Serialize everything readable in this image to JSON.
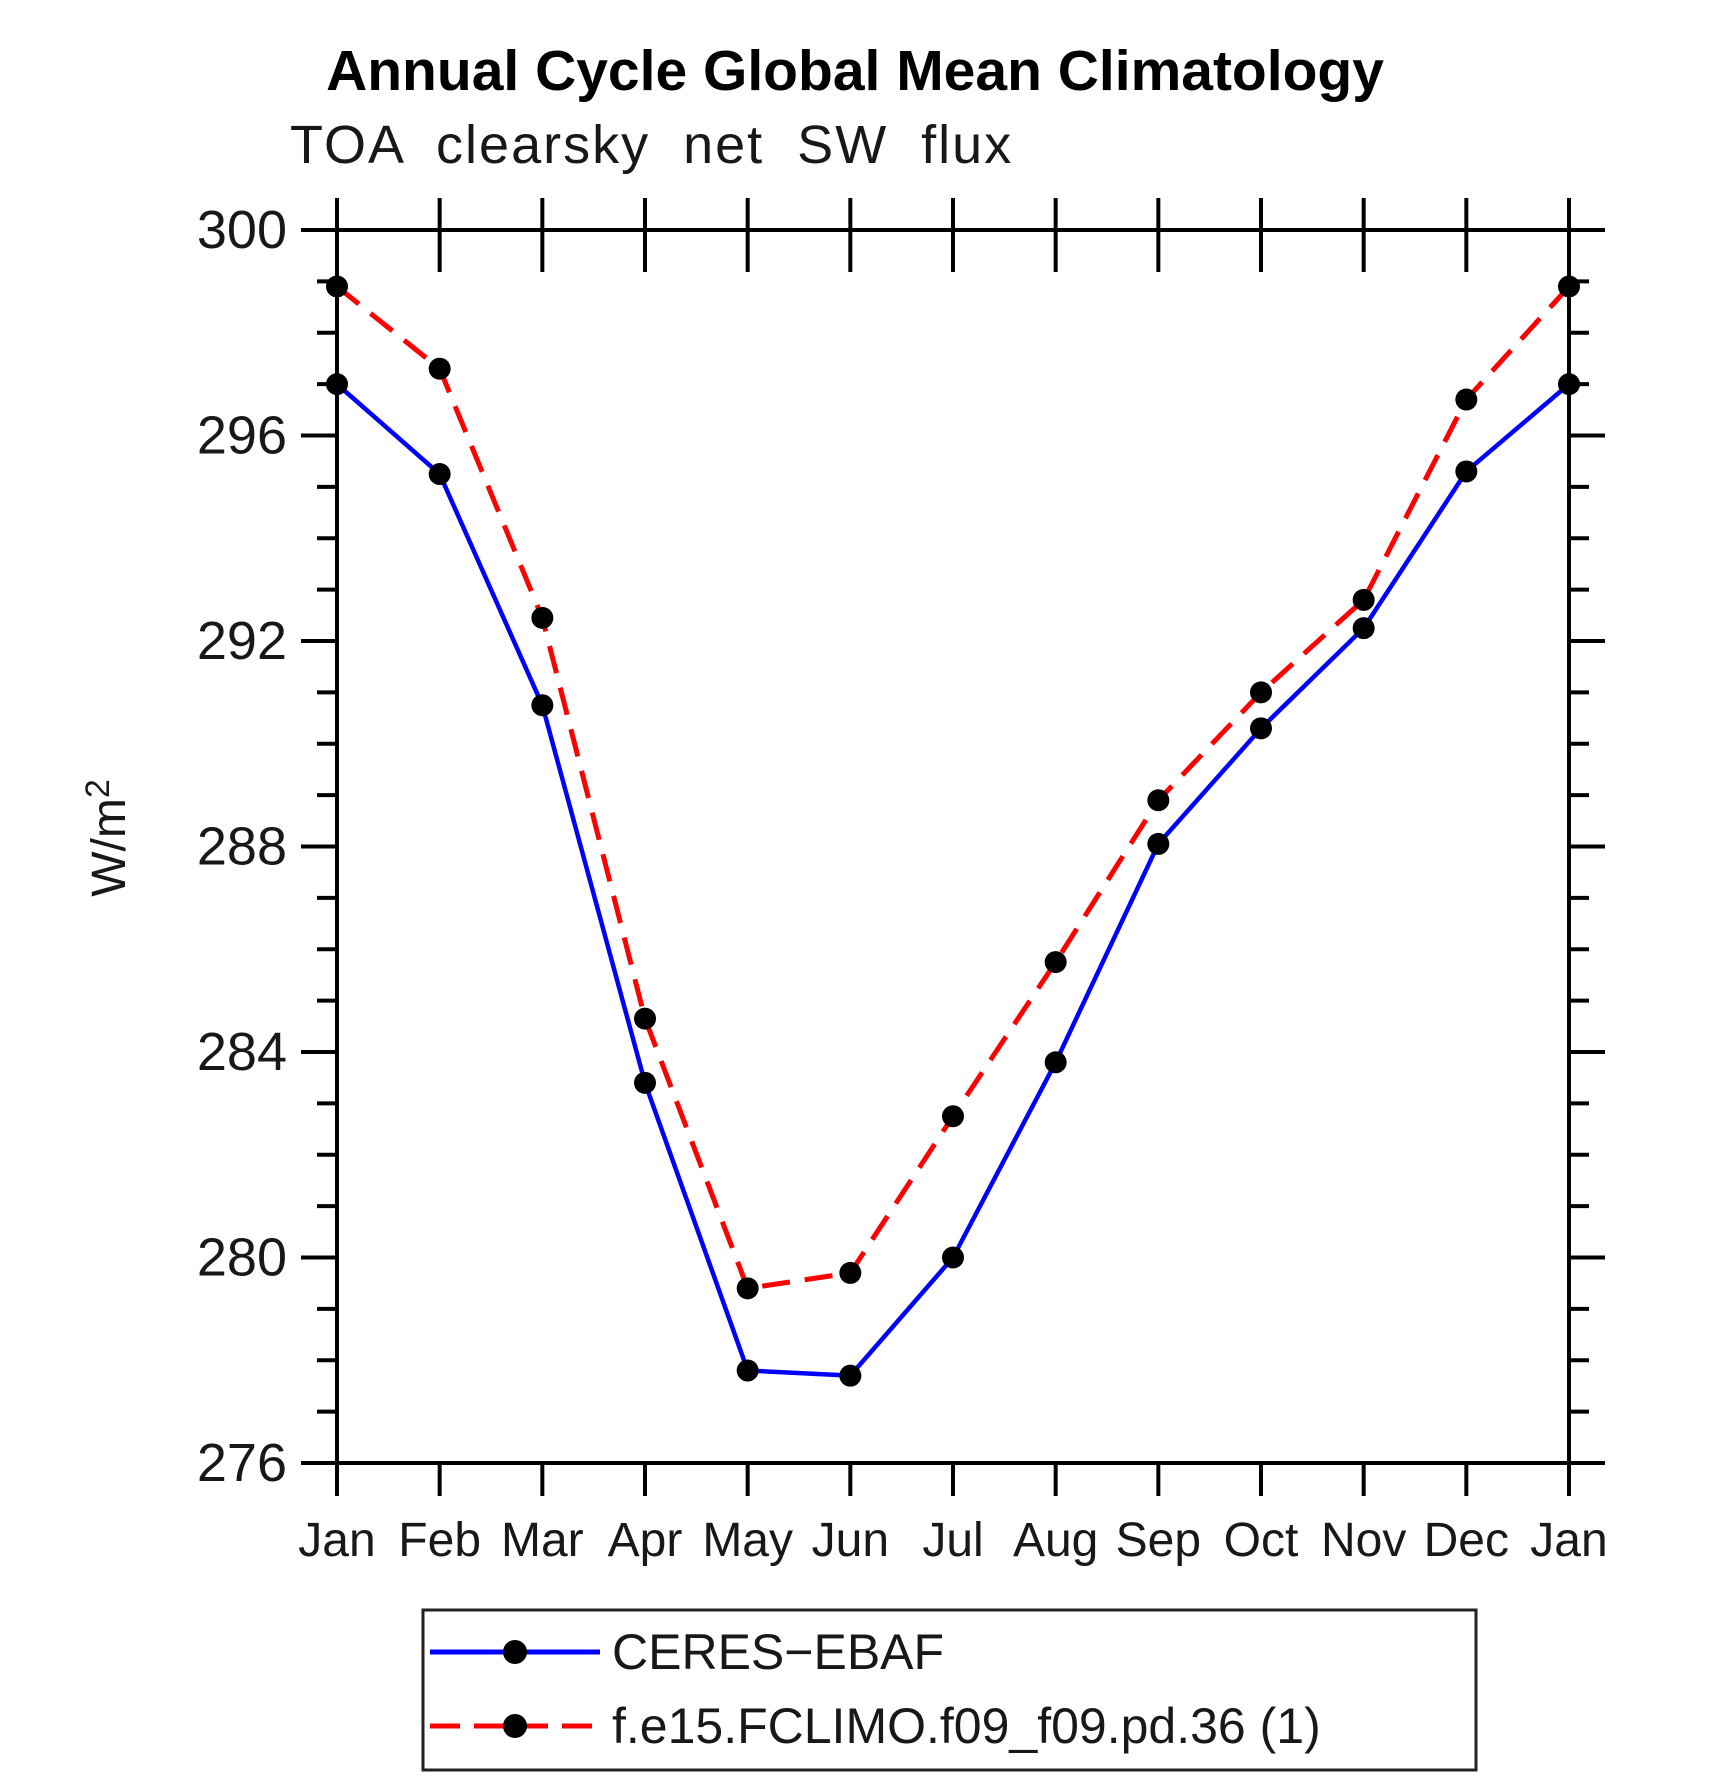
{
  "title": "Annual Cycle Global Mean Climatology",
  "subtitle": "TOA clearsky net SW flux",
  "ylabel": "W/m",
  "ylabel_sup": "2",
  "colors": {
    "ceres_blue": "#0000ff",
    "model_red": "#ff0000",
    "marker_black": "#000000",
    "axis_black": "#000000"
  },
  "legend": {
    "items": [
      {
        "label": "CERES−EBAF",
        "color": "#0000ff",
        "style": "solid",
        "marker": "black-dot"
      },
      {
        "label": "f.e15.FCLIMO.f09_f09.pd.36 (1)",
        "color": "#ff0000",
        "style": "dashed",
        "marker": "black-dot"
      }
    ]
  },
  "chart_data": {
    "type": "line",
    "title": "Annual Cycle Global Mean Climatology",
    "subtitle": "TOA clearsky net SW flux",
    "ylabel": "W/m2",
    "categories": [
      "Jan",
      "Feb",
      "Mar",
      "Apr",
      "May",
      "Jun",
      "Jul",
      "Aug",
      "Sep",
      "Oct",
      "Nov",
      "Dec",
      "Jan"
    ],
    "series": [
      {
        "name": "CERES-EBAF",
        "color": "#0000ff",
        "style": "solid",
        "line_width": 4.5,
        "marker": "circle",
        "marker_color": "#000000",
        "values": [
          297.0,
          295.25,
          290.75,
          283.4,
          277.8,
          277.7,
          280.0,
          283.8,
          288.05,
          290.3,
          292.25,
          295.3,
          297.0
        ]
      },
      {
        "name": "f.e15.FCLIMO.f09_f09.pd.36 (1)",
        "color": "#ff0000",
        "style": "dashed",
        "line_width": 5,
        "marker": "circle",
        "marker_color": "#000000",
        "values": [
          298.9,
          297.3,
          292.45,
          284.65,
          279.4,
          279.7,
          282.75,
          285.75,
          288.9,
          291.0,
          292.8,
          296.7,
          298.9
        ]
      }
    ],
    "ylim": [
      276,
      300
    ],
    "yticks_major": [
      276,
      280,
      284,
      288,
      292,
      296,
      300
    ],
    "ytick_minor_step": 1,
    "grid": false,
    "legend_position": "bottom"
  }
}
